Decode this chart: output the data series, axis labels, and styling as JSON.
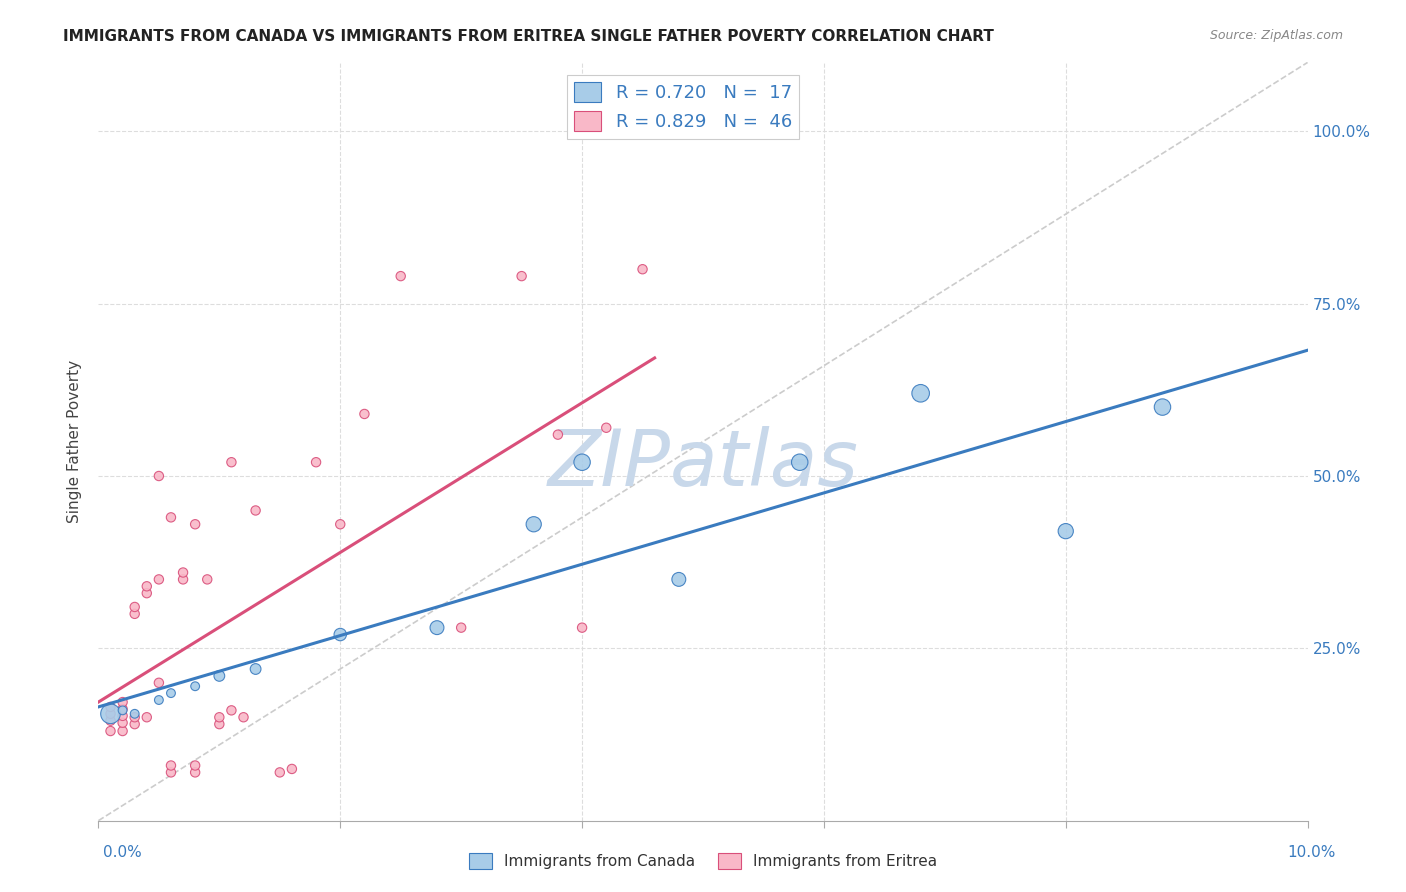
{
  "title": "IMMIGRANTS FROM CANADA VS IMMIGRANTS FROM ERITREA SINGLE FATHER POVERTY CORRELATION CHART",
  "source": "Source: ZipAtlas.com",
  "ylabel": "Single Father Poverty",
  "legend_canada": "R = 0.720   N =  17",
  "legend_eritrea": "R = 0.829   N =  46",
  "legend_bottom_canada": "Immigrants from Canada",
  "legend_bottom_eritrea": "Immigrants from Eritrea",
  "canada_color": "#a8cce8",
  "eritrea_color": "#f9b8c8",
  "canada_line_color": "#3a7bbf",
  "eritrea_line_color": "#d94f7a",
  "diagonal_color": "#cccccc",
  "watermark_color": "#c8d8ea",
  "canada_points": [
    [
      0.001,
      0.155
    ],
    [
      0.002,
      0.16
    ],
    [
      0.003,
      0.155
    ],
    [
      0.005,
      0.175
    ],
    [
      0.006,
      0.185
    ],
    [
      0.008,
      0.195
    ],
    [
      0.01,
      0.21
    ],
    [
      0.013,
      0.22
    ],
    [
      0.02,
      0.27
    ],
    [
      0.028,
      0.28
    ],
    [
      0.036,
      0.43
    ],
    [
      0.04,
      0.52
    ],
    [
      0.048,
      0.35
    ],
    [
      0.058,
      0.52
    ],
    [
      0.068,
      0.62
    ],
    [
      0.08,
      0.42
    ],
    [
      0.088,
      0.6
    ]
  ],
  "canada_sizes": [
    200,
    40,
    40,
    40,
    40,
    40,
    60,
    60,
    80,
    100,
    120,
    140,
    100,
    140,
    160,
    120,
    140
  ],
  "eritrea_points": [
    [
      0.001,
      0.13
    ],
    [
      0.001,
      0.145
    ],
    [
      0.001,
      0.155
    ],
    [
      0.001,
      0.165
    ],
    [
      0.002,
      0.13
    ],
    [
      0.002,
      0.142
    ],
    [
      0.002,
      0.152
    ],
    [
      0.002,
      0.162
    ],
    [
      0.002,
      0.172
    ],
    [
      0.003,
      0.14
    ],
    [
      0.003,
      0.15
    ],
    [
      0.003,
      0.3
    ],
    [
      0.003,
      0.31
    ],
    [
      0.004,
      0.15
    ],
    [
      0.004,
      0.33
    ],
    [
      0.004,
      0.34
    ],
    [
      0.005,
      0.2
    ],
    [
      0.005,
      0.35
    ],
    [
      0.005,
      0.5
    ],
    [
      0.006,
      0.07
    ],
    [
      0.006,
      0.08
    ],
    [
      0.006,
      0.44
    ],
    [
      0.007,
      0.35
    ],
    [
      0.007,
      0.36
    ],
    [
      0.008,
      0.07
    ],
    [
      0.008,
      0.08
    ],
    [
      0.008,
      0.43
    ],
    [
      0.009,
      0.35
    ],
    [
      0.01,
      0.14
    ],
    [
      0.01,
      0.15
    ],
    [
      0.011,
      0.16
    ],
    [
      0.011,
      0.52
    ],
    [
      0.012,
      0.15
    ],
    [
      0.013,
      0.45
    ],
    [
      0.015,
      0.07
    ],
    [
      0.016,
      0.075
    ],
    [
      0.018,
      0.52
    ],
    [
      0.02,
      0.43
    ],
    [
      0.022,
      0.59
    ],
    [
      0.025,
      0.79
    ],
    [
      0.03,
      0.28
    ],
    [
      0.035,
      0.79
    ],
    [
      0.038,
      0.56
    ],
    [
      0.04,
      0.28
    ],
    [
      0.042,
      0.57
    ],
    [
      0.045,
      0.8
    ]
  ],
  "eritrea_sizes": [
    45,
    45,
    45,
    45,
    45,
    45,
    45,
    45,
    45,
    45,
    45,
    45,
    45,
    45,
    45,
    45,
    45,
    45,
    45,
    45,
    45,
    45,
    45,
    45,
    45,
    45,
    45,
    45,
    45,
    45,
    45,
    45,
    45,
    45,
    45,
    45,
    45,
    45,
    45,
    45,
    45,
    45,
    45,
    45,
    45,
    45
  ],
  "xlim": [
    0,
    0.1
  ],
  "ylim": [
    0,
    1.1
  ],
  "bg_color": "#ffffff",
  "grid_color": "#dddddd"
}
